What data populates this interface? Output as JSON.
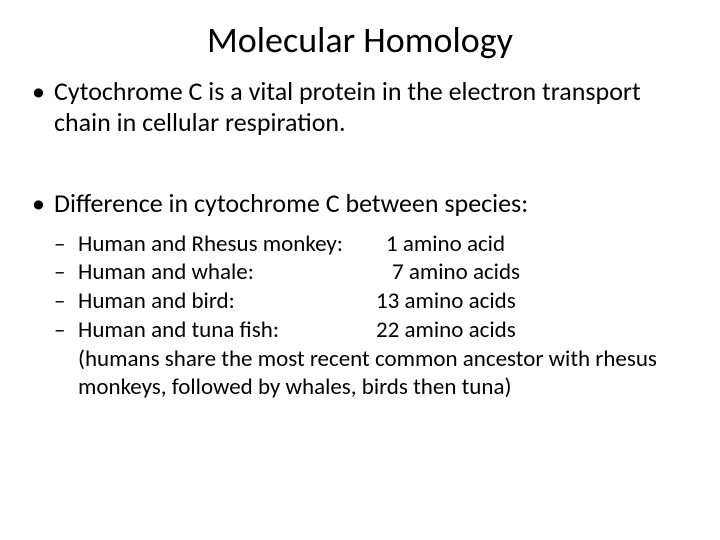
{
  "title": "Molecular Homology",
  "bullets": {
    "b1": "Cytochrome C is a vital protein in the electron transport chain in cellular respiration.",
    "b2": "Difference in cytochrome C between species:"
  },
  "comparisons": [
    {
      "label": "Human and Rhesus monkey:",
      "value": "1 amino acid"
    },
    {
      "label": "Human and whale:",
      "value": "7 amino acids"
    },
    {
      "label": "Human and bird:",
      "value": "13 amino acids"
    },
    {
      "label": "Human and tuna fish:",
      "value": "22 amino acids"
    }
  ],
  "note": "(humans share the most recent common ancestor with rhesus monkeys, followed by whales, birds then tuna)",
  "style": {
    "background": "#ffffff",
    "text_color": "#000000",
    "title_fontsize": 36,
    "body_fontsize": 26,
    "sub_fontsize": 23,
    "font_family": "Calibri"
  }
}
